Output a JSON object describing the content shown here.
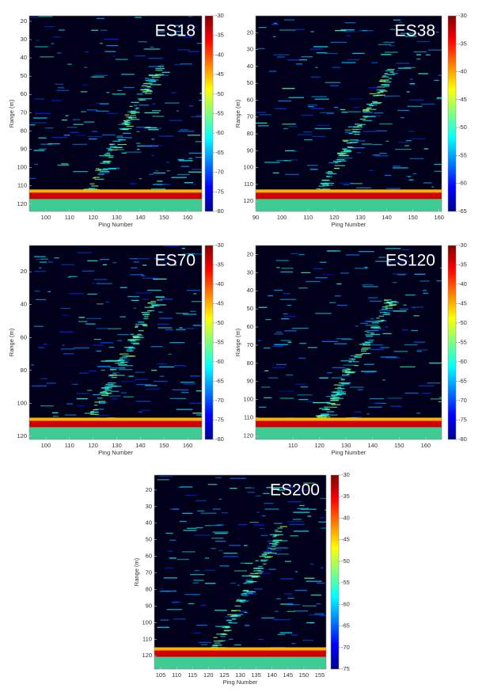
{
  "chart_data": [
    {
      "type": "heatmap",
      "title": "ES18",
      "xlabel": "Ping Number",
      "ylabel": "Range (m)",
      "colormap": "jet",
      "xlim": [
        93,
        166
      ],
      "xticks": [
        100,
        110,
        120,
        130,
        140,
        150,
        160
      ],
      "ylim": [
        17,
        124
      ],
      "yticks": [
        20,
        30,
        40,
        50,
        60,
        70,
        80,
        90,
        100,
        110,
        120
      ],
      "y_reversed": true,
      "clim": [
        -80,
        -30
      ],
      "cticks": [
        -30,
        -35,
        -40,
        -45,
        -50,
        -55,
        -60,
        -65,
        -70,
        -75,
        -80
      ]
    },
    {
      "type": "heatmap",
      "title": "ES38",
      "xlabel": "Ping Number",
      "ylabel": "Range (m)",
      "colormap": "jet",
      "xlim": [
        90,
        161
      ],
      "xticks": [
        90,
        100,
        110,
        120,
        130,
        140,
        150,
        160
      ],
      "ylim": [
        10,
        126
      ],
      "yticks": [
        20,
        30,
        40,
        50,
        60,
        70,
        80,
        90,
        100,
        110,
        120
      ],
      "y_reversed": true,
      "clim": [
        -65,
        -30
      ],
      "cticks": [
        -30,
        -35,
        -40,
        -45,
        -50,
        -55,
        -60,
        -65
      ]
    },
    {
      "type": "heatmap",
      "title": "ES70",
      "xlabel": "Ping Number",
      "ylabel": "Range (m)",
      "colormap": "jet",
      "xlim": [
        93,
        166
      ],
      "xticks": [
        100,
        110,
        120,
        130,
        140,
        150,
        160
      ],
      "ylim": [
        4,
        122
      ],
      "yticks": [
        20,
        40,
        60,
        80,
        100,
        120
      ],
      "y_reversed": true,
      "clim": [
        -80,
        -30
      ],
      "cticks": [
        -30,
        -35,
        -40,
        -45,
        -50,
        -55,
        -60,
        -65,
        -70,
        -75,
        -80
      ]
    },
    {
      "type": "heatmap",
      "title": "ES120",
      "xlabel": "Ping Number",
      "ylabel": "Range (m)",
      "colormap": "jet",
      "xlim": [
        96,
        166
      ],
      "xticks": [
        110,
        120,
        130,
        140,
        150,
        160
      ],
      "ylim": [
        15,
        122
      ],
      "yticks": [
        20,
        30,
        40,
        50,
        60,
        70,
        80,
        90,
        100,
        110,
        120
      ],
      "y_reversed": true,
      "clim": [
        -80,
        -30
      ],
      "cticks": [
        -30,
        -35,
        -40,
        -45,
        -50,
        -55,
        -60,
        -65,
        -70,
        -75,
        -80
      ]
    },
    {
      "type": "heatmap",
      "title": "ES200",
      "xlabel": "Ping Number",
      "ylabel": "Range (m)",
      "colormap": "jet",
      "xlim": [
        103,
        157
      ],
      "xticks": [
        105,
        110,
        115,
        120,
        125,
        130,
        135,
        140,
        145,
        150,
        155
      ],
      "ylim": [
        11,
        128
      ],
      "yticks": [
        20,
        30,
        40,
        50,
        60,
        70,
        80,
        90,
        100,
        110,
        120
      ],
      "y_reversed": true,
      "clim": [
        -75,
        -30
      ],
      "cticks": [
        -30,
        -35,
        -40,
        -45,
        -50,
        -55,
        -60,
        -65,
        -70,
        -75
      ]
    }
  ]
}
